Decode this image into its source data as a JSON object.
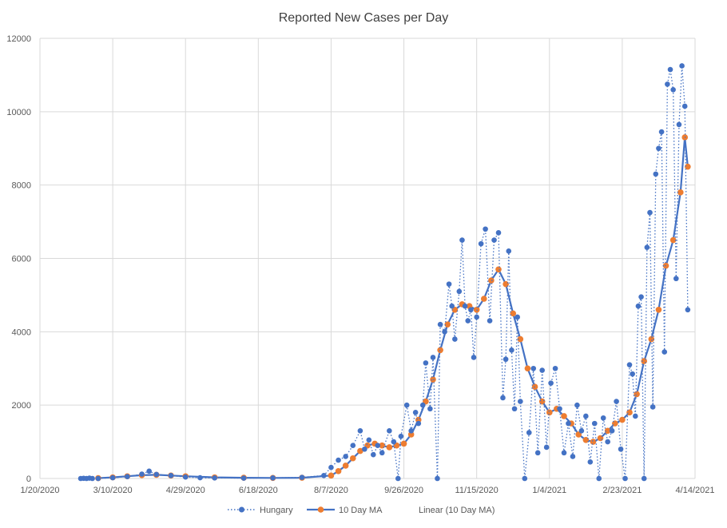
{
  "chart_data": {
    "type": "line",
    "title": "Reported New Cases per Day",
    "xlabel": "",
    "ylabel": "",
    "ylim": [
      0,
      12000
    ],
    "y_ticks": [
      "0",
      "2000",
      "4000",
      "6000",
      "8000",
      "10000",
      "12000"
    ],
    "x_ticks": [
      "1/20/2020",
      "3/10/2020",
      "4/29/2020",
      "6/18/2020",
      "8/7/2020",
      "9/26/2020",
      "11/15/2020",
      "1/4/2021",
      "2/23/2021",
      "4/14/2021"
    ],
    "x_range_days": [
      0,
      450
    ],
    "legend": [
      "Hungary",
      "10 Day MA",
      "Linear (10 Day MA)"
    ],
    "colors": {
      "Hungary": "#4472c4",
      "10 Day MA": "#ed7d31",
      "grid": "#d9d9d9"
    },
    "series": [
      {
        "name": "Hungary",
        "style": "dotted-line-with-markers",
        "x": [
          40,
          50,
          60,
          70,
          75,
          80,
          90,
          100,
          110,
          120,
          140,
          160,
          180,
          195,
          200,
          205,
          210,
          215,
          220,
          223,
          226,
          229,
          232,
          235,
          240,
          243,
          246,
          248,
          252,
          255,
          258,
          260,
          263,
          265,
          268,
          270,
          273,
          275,
          278,
          281,
          283,
          285,
          288,
          290,
          292,
          294,
          296,
          298,
          300,
          303,
          306,
          309,
          312,
          315,
          318,
          320,
          322,
          324,
          326,
          328,
          330,
          333,
          336,
          339,
          342,
          345,
          348,
          351,
          354,
          357,
          360,
          363,
          366,
          369,
          372,
          375,
          378,
          381,
          384,
          387,
          390,
          393,
          396,
          399,
          402,
          405,
          407,
          409,
          411,
          413,
          415,
          417,
          419,
          421,
          423,
          425,
          427,
          429,
          431,
          433,
          435,
          437,
          439,
          441,
          443,
          445
        ],
        "values": [
          0,
          20,
          50,
          120,
          200,
          110,
          80,
          40,
          20,
          15,
          10,
          15,
          30,
          80,
          300,
          500,
          600,
          900,
          1300,
          800,
          1050,
          650,
          900,
          700,
          1300,
          1000,
          0,
          1150,
          2000,
          1300,
          1800,
          1500,
          2000,
          3150,
          1900,
          3300,
          0,
          4200,
          4000,
          5300,
          4700,
          3800,
          5100,
          6500,
          4700,
          4300,
          4600,
          3300,
          4400,
          6400,
          6800,
          4300,
          6500,
          6700,
          2200,
          3250,
          6200,
          3500,
          1900,
          4400,
          2100,
          0,
          1250,
          3000,
          700,
          2950,
          850,
          2600,
          3000,
          1900,
          700,
          1500,
          600,
          2000,
          1300,
          1700,
          450,
          1500,
          0,
          1650,
          1000,
          1300,
          2100,
          800,
          0,
          3100,
          2850,
          1700,
          4700,
          4950,
          0,
          6300,
          7250,
          1950,
          8300,
          9000,
          9450,
          3450,
          10750,
          11150,
          10600,
          5450,
          9650,
          11250,
          10150,
          4600
        ],
        "markers_only": [
          [
            28,
            0
          ],
          [
            30,
            5
          ],
          [
            32,
            0
          ],
          [
            34,
            10
          ],
          [
            36,
            0
          ]
        ]
      },
      {
        "name": "10 Day MA",
        "style": "solid-line-with-markers",
        "x": [
          40,
          50,
          60,
          70,
          80,
          90,
          100,
          120,
          140,
          160,
          180,
          200,
          205,
          210,
          215,
          220,
          225,
          230,
          235,
          240,
          245,
          250,
          255,
          260,
          265,
          270,
          275,
          280,
          285,
          290,
          295,
          300,
          305,
          310,
          315,
          320,
          325,
          330,
          335,
          340,
          345,
          350,
          355,
          360,
          365,
          370,
          375,
          380,
          385,
          390,
          395,
          400,
          405,
          410,
          415,
          420,
          425,
          430,
          435,
          440,
          443,
          445
        ],
        "values": [
          10,
          30,
          60,
          90,
          100,
          80,
          60,
          30,
          20,
          15,
          20,
          80,
          200,
          350,
          550,
          750,
          900,
          950,
          900,
          850,
          900,
          950,
          1200,
          1600,
          2100,
          2700,
          3500,
          4200,
          4600,
          4750,
          4700,
          4600,
          4900,
          5400,
          5700,
          5300,
          4500,
          3800,
          3000,
          2500,
          2100,
          1800,
          1900,
          1700,
          1500,
          1200,
          1050,
          1000,
          1100,
          1300,
          1500,
          1600,
          1800,
          2300,
          3200,
          3800,
          4600,
          5800,
          6500,
          7800,
          9300,
          8500
        ]
      },
      {
        "name": "Linear (10 Day MA)",
        "style": "legend-only",
        "values": []
      }
    ]
  }
}
